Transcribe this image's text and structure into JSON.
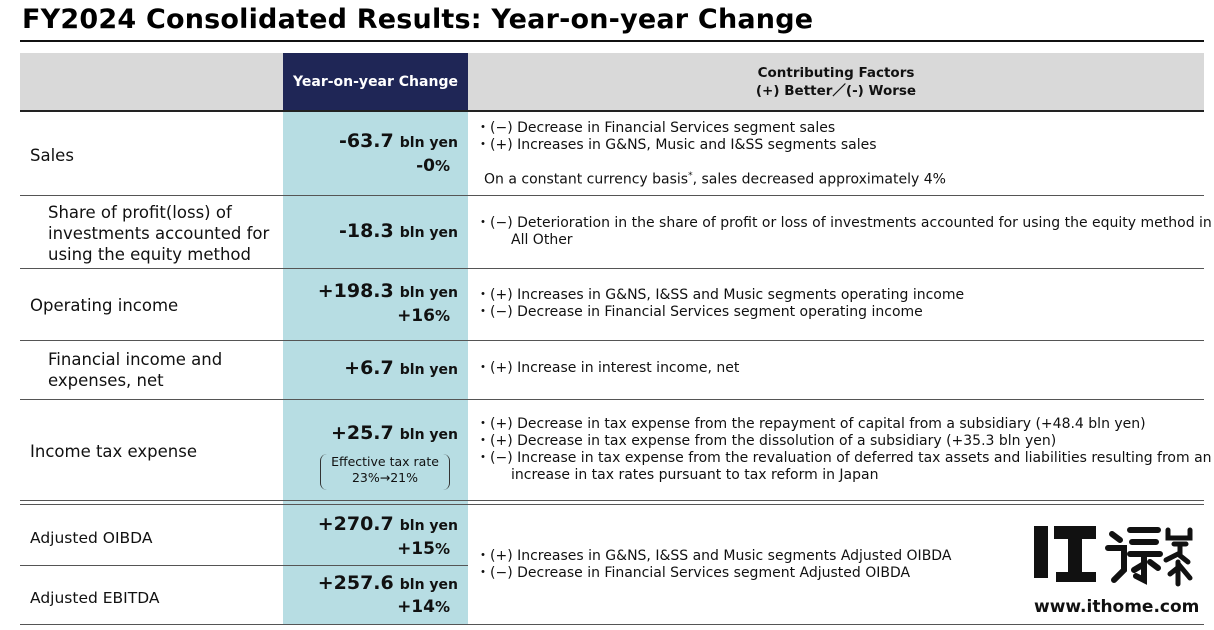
{
  "title": "FY2024 Consolidated Results: Year-on-year Change",
  "header": {
    "yoy": "Year-on-year Change",
    "factors_line1": "Contributing Factors",
    "factors_line2": "(+) Better／(-) Worse"
  },
  "rows": [
    {
      "label": "Sales",
      "value": "-63.7",
      "unit": "bln yen",
      "pct": "-0",
      "pct_sym": "%",
      "factors": [
        "・(−) Decrease in Financial Services segment sales",
        "・(+) Increases in G&NS, Music and I&SS segments sales"
      ],
      "note": "On a constant currency basis",
      "note_mark": "*",
      "note_tail": ", sales decreased approximately 4%"
    },
    {
      "label_lines": [
        "Share of profit(loss) of",
        "investments accounted for",
        "using the equity method"
      ],
      "value": "-18.3",
      "unit": "bln yen",
      "factors": [
        "・(−) Deterioration in the share of profit or loss of investments accounted for using the equity method in All Other"
      ]
    },
    {
      "label": "Operating income",
      "value": "+198.3",
      "unit": "bln yen",
      "pct": "+16",
      "pct_sym": "%",
      "factors": [
        "・(+) Increases in G&NS, I&SS and Music segments operating income",
        "・(−) Decrease in Financial Services segment operating income"
      ]
    },
    {
      "label_lines": [
        "Financial income and",
        "expenses, net"
      ],
      "value": "+6.7",
      "unit": "bln yen",
      "factors": [
        "・(+) Increase in interest income, net"
      ]
    },
    {
      "label": "Income tax expense",
      "value": "+25.7",
      "unit": "bln yen",
      "box_line1": "Effective tax rate",
      "box_line2": "23%→21%",
      "factors": [
        "・(+) Decrease in tax expense from the repayment of capital from a subsidiary (+48.4 bln yen)",
        "・(+) Decrease in tax expense from the dissolution of a subsidiary (+35.3 bln yen)",
        "・(−) Increase in tax expense from the revaluation of deferred tax assets and liabilities resulting from an increase in tax rates pursuant to tax reform in Japan"
      ]
    },
    {
      "label": "Adjusted OIBDA",
      "value": "+270.7",
      "unit": "bln yen",
      "pct": "+15",
      "pct_sym": "%"
    },
    {
      "label": "Adjusted EBITDA",
      "value": "+257.6",
      "unit": "bln yen",
      "pct": "+14",
      "pct_sym": "%"
    }
  ],
  "oibda_factors": [
    "・(+) Increases in G&NS, I&SS and Music segments Adjusted OIBDA",
    "・(−) Decrease in Financial Services segment Adjusted OIBDA"
  ],
  "watermark": {
    "logo": "IT之家",
    "url": "www.ithome.com"
  }
}
